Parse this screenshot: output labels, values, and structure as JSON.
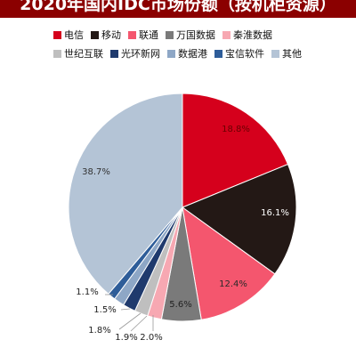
{
  "title": "2020年国内IDC市场份额（按机柜资源）",
  "chart_data": {
    "type": "pie",
    "title": "2020年国内IDC市场份额（按机柜资源）",
    "legend_placement": "top",
    "slices": [
      {
        "name": "电信",
        "value": 18.8,
        "label": "18.8%",
        "color": "#d5001c"
      },
      {
        "name": "移动",
        "value": 16.1,
        "label": "16.1%",
        "color": "#231815"
      },
      {
        "name": "联通",
        "value": 12.4,
        "label": "12.4%",
        "color": "#f4566e"
      },
      {
        "name": "万国数据",
        "value": 5.6,
        "label": "5.6%",
        "color": "#7a7a7a"
      },
      {
        "name": "秦淮数据",
        "value": 2.0,
        "label": "2.0%",
        "color": "#f7a8b2"
      },
      {
        "name": "世纪互联",
        "value": 1.9,
        "label": "1.9%",
        "color": "#bfbfbf"
      },
      {
        "name": "光环新网",
        "value": 1.8,
        "label": "1.8%",
        "color": "#1f3a6d"
      },
      {
        "name": "数据港",
        "value": 1.5,
        "label": "1.5%",
        "color": "#8ea7c6"
      },
      {
        "name": "宝信软件",
        "value": 1.1,
        "label": "1.1%",
        "color": "#2e5d99"
      },
      {
        "name": "其他",
        "value": 38.7,
        "label": "38.7%",
        "color": "#b4c4d6"
      }
    ]
  }
}
